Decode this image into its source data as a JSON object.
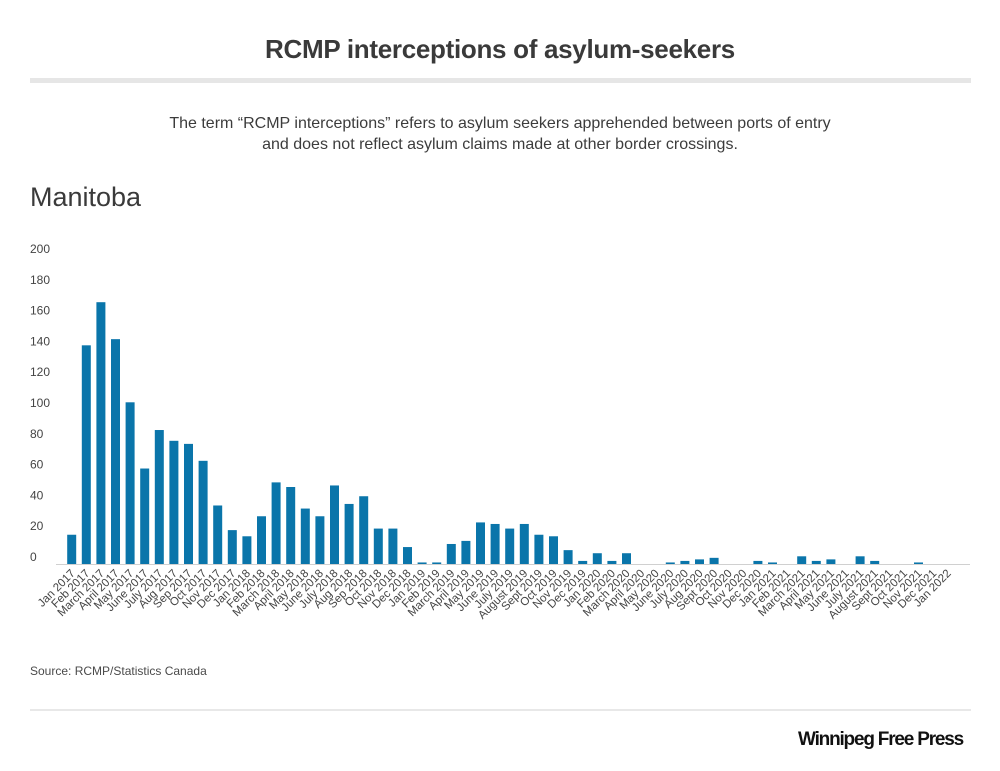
{
  "header": {
    "title": "RCMP interceptions of asylum-seekers",
    "subtitle_line1": "The term “RCMP interceptions” refers to asylum seekers apprehended between ports of entry",
    "subtitle_line2": "and does not reflect asylum claims made at other border crossings."
  },
  "region_label": "Manitoba",
  "footer": {
    "source": "Source: RCMP/Statistics Canada",
    "logo_text": "Winnipeg Free Press"
  },
  "colors": {
    "bar": "#0a75aa",
    "axis": "#d0d0d0"
  },
  "chart_data": {
    "type": "bar",
    "title": "RCMP interceptions of asylum-seekers",
    "subtitle": "Manitoba",
    "xlabel": "",
    "ylabel": "",
    "ylim": [
      0,
      200
    ],
    "yticks": [
      0,
      20,
      40,
      60,
      80,
      100,
      120,
      140,
      160,
      180,
      200
    ],
    "grid": false,
    "legend": "none",
    "categories": [
      "Jan 2017",
      "Feb 2017",
      "March 2017",
      "April 2017",
      "May 2017",
      "June 2017",
      "July 2017",
      "Aug 2017",
      "Sep 2017",
      "Oct 2017",
      "Nov 2017",
      "Dec 2017",
      "Jan 2018",
      "Feb 2018",
      "March 2018",
      "April 2018",
      "May 2018",
      "June 2018",
      "July 2018",
      "Aug 2018",
      "Sep 2018",
      "Oct 2018",
      "Nov 2018",
      "Dec 2018",
      "Jan 2019",
      "Feb 2019",
      "March 2019",
      "April 2019",
      "May 2019",
      "June 2019",
      "July 2019",
      "August 2019",
      "Sept 2019",
      "Oct 2019",
      "Nov 2019",
      "Dec 2019",
      "Jan 2020",
      "Feb 2020",
      "March 2020",
      "April 2020",
      "May 2020",
      "June 2020",
      "July 2020",
      "Aug 2020",
      "Sept 2020",
      "Oct 2020",
      "Nov 2020",
      "Dec 2020",
      "Jan 2021",
      "Feb 2021",
      "March 2021",
      "April 2021",
      "May 2021",
      "June 2021",
      "July 2021",
      "August 2021",
      "Sept 2021",
      "Oct 2021",
      "Nov 2021",
      "Dec 2021",
      "Jan 2022"
    ],
    "values": [
      19,
      142,
      170,
      146,
      105,
      62,
      87,
      80,
      78,
      67,
      38,
      22,
      18,
      31,
      53,
      50,
      36,
      31,
      51,
      39,
      44,
      23,
      23,
      11,
      1,
      1,
      13,
      15,
      27,
      26,
      23,
      26,
      19,
      18,
      9,
      2,
      7,
      2,
      7,
      0,
      0,
      1,
      2,
      3,
      4,
      0,
      0,
      2,
      1,
      0,
      5,
      2,
      3,
      0,
      5,
      2,
      0,
      0,
      1,
      0,
      0
    ]
  }
}
